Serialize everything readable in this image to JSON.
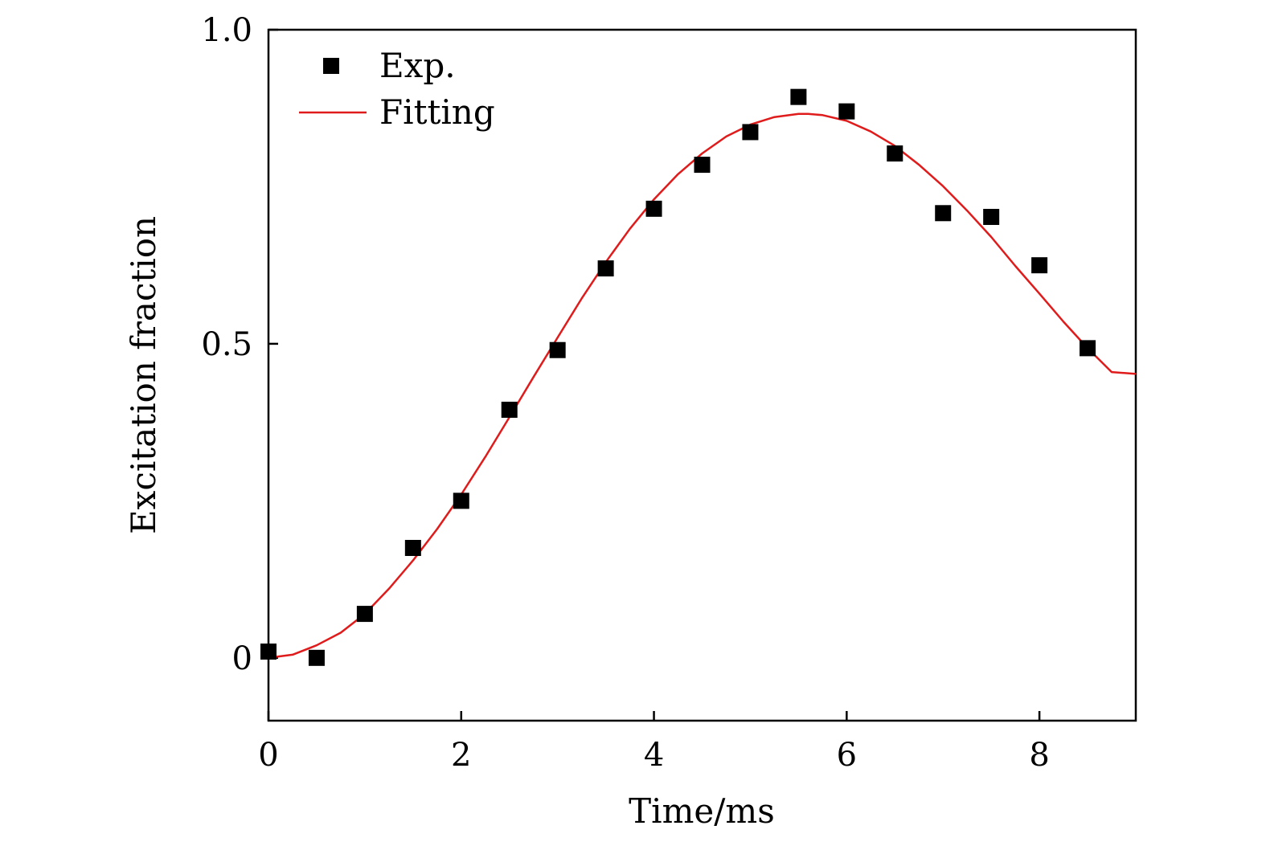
{
  "chart_data": {
    "type": "scatter",
    "xlabel": "Time/ms",
    "ylabel": "Excitation fraction",
    "xlim": [
      0,
      9
    ],
    "ylim": [
      -0.1,
      1.0
    ],
    "x_ticks": [
      0,
      2,
      4,
      6,
      8
    ],
    "x_tick_labels": [
      "0",
      "2",
      "4",
      "6",
      "8"
    ],
    "y_ticks": [
      0,
      0.5,
      1.0
    ],
    "y_tick_labels": [
      "0",
      "0.5",
      "1.0"
    ],
    "grid": false,
    "legend": {
      "position": "top-left"
    },
    "series": [
      {
        "name": "Exp.",
        "kind": "scatter",
        "marker": "square",
        "color": "#000000",
        "x": [
          0,
          0.5,
          1,
          1.5,
          2,
          2.5,
          3,
          3.5,
          4,
          4.5,
          5,
          5.5,
          6,
          6.5,
          7,
          7.5,
          8,
          8.5
        ],
        "y": [
          0.01,
          0.0,
          0.07,
          0.175,
          0.25,
          0.395,
          0.49,
          0.62,
          0.715,
          0.785,
          0.837,
          0.893,
          0.87,
          0.803,
          0.708,
          0.702,
          0.625,
          0.493
        ]
      },
      {
        "name": "Fitting",
        "kind": "line",
        "color": "#e01b1b",
        "x": [
          0,
          0.25,
          0.5,
          0.75,
          1,
          1.25,
          1.5,
          1.75,
          2,
          2.25,
          2.5,
          2.75,
          3,
          3.25,
          3.5,
          3.75,
          4,
          4.25,
          4.5,
          4.75,
          5,
          5.25,
          5.5,
          5.6,
          5.75,
          6,
          6.25,
          6.5,
          6.75,
          7,
          7.25,
          7.5,
          7.75,
          8,
          8.25,
          8.5,
          8.75,
          9
        ],
        "y": [
          0.0,
          0.005,
          0.02,
          0.04,
          0.07,
          0.11,
          0.155,
          0.205,
          0.26,
          0.32,
          0.383,
          0.447,
          0.51,
          0.572,
          0.63,
          0.683,
          0.73,
          0.77,
          0.803,
          0.83,
          0.849,
          0.861,
          0.866,
          0.866,
          0.864,
          0.855,
          0.838,
          0.815,
          0.785,
          0.751,
          0.712,
          0.67,
          0.624,
          0.58,
          0.535,
          0.493,
          0.455,
          0.452
        ]
      }
    ]
  }
}
